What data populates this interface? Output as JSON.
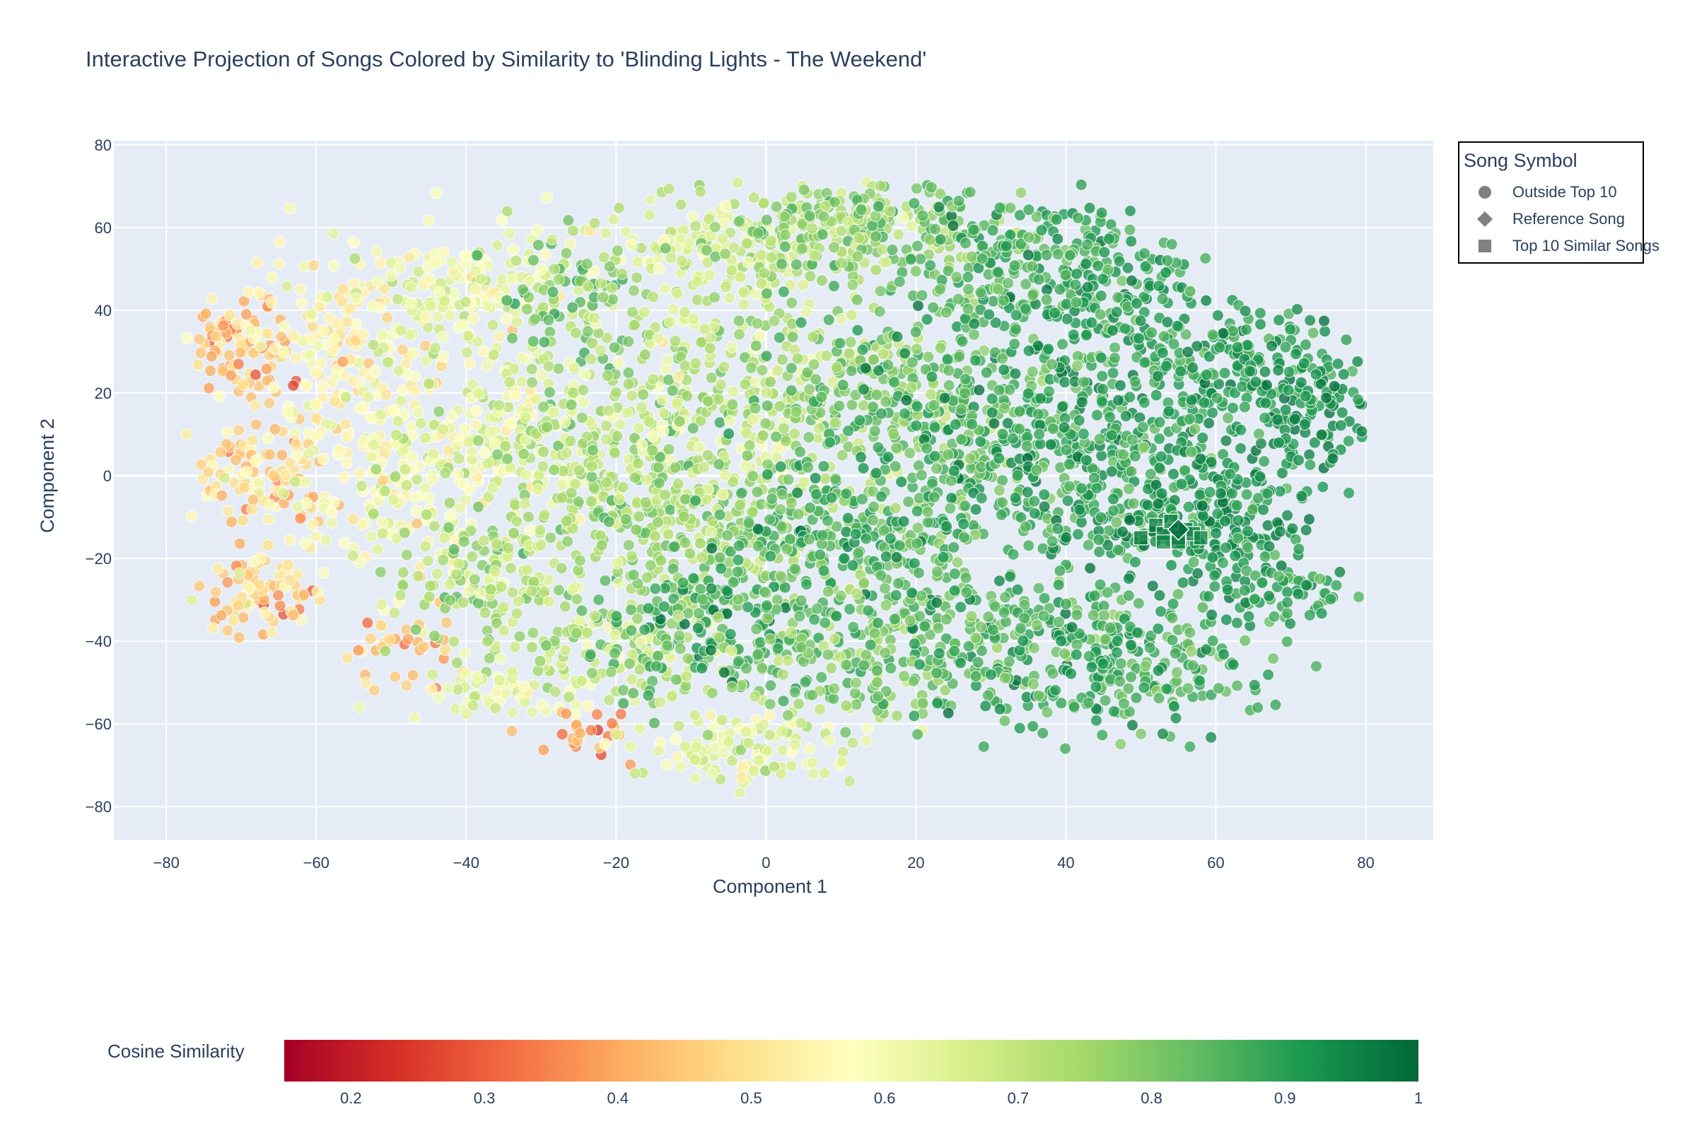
{
  "chart_data": {
    "type": "scatter",
    "title": "Interactive Projection of Songs Colored by Similarity to 'Blinding Lights - The Weekend'",
    "xlabel": "Component 1",
    "ylabel": "Component 2",
    "xlim": [
      -87,
      89
    ],
    "ylim": [
      -88,
      81
    ],
    "xticks": [
      -80,
      -60,
      -40,
      -20,
      0,
      20,
      40,
      60,
      80
    ],
    "yticks": [
      -80,
      -60,
      -40,
      -20,
      0,
      20,
      40,
      60,
      80
    ],
    "x_tick_labels": [
      "−80",
      "−60",
      "−40",
      "−20",
      "0",
      "20",
      "40",
      "60",
      "80"
    ],
    "y_tick_labels": [
      "−80",
      "−60",
      "−40",
      "−20",
      "0",
      "20",
      "40",
      "60",
      "80"
    ],
    "grid": true,
    "legend": {
      "title": "Song Symbol",
      "placement": "top-right, outside plot",
      "entries": [
        "Outside Top 10",
        "Reference Song",
        "Top 10 Similar Songs"
      ]
    },
    "colorbar": {
      "title": "Cosine Similarity",
      "range": [
        0.15,
        1.0
      ],
      "ticks": [
        0.2,
        0.3,
        0.4,
        0.5,
        0.6,
        0.7,
        0.8,
        0.9,
        1
      ],
      "tick_labels": [
        "0.2",
        "0.3",
        "0.4",
        "0.5",
        "0.6",
        "0.7",
        "0.8",
        "0.9",
        "1"
      ],
      "colorscale": [
        "#a50026",
        "#d73027",
        "#f46d43",
        "#fdae61",
        "#fee08b",
        "#ffffbf",
        "#d9ef8b",
        "#a6d96a",
        "#66bd63",
        "#1a9850",
        "#006837"
      ],
      "placement": "bottom, horizontal"
    },
    "reference_song": {
      "x": 55,
      "y": -13,
      "similarity": 1.0
    },
    "top10_similar_songs": [
      {
        "x": 50,
        "y": -15,
        "similarity": 0.97
      },
      {
        "x": 52,
        "y": -12,
        "similarity": 0.96
      },
      {
        "x": 53,
        "y": -14,
        "similarity": 0.97
      },
      {
        "x": 54,
        "y": -11,
        "similarity": 0.96
      },
      {
        "x": 55,
        "y": -15,
        "similarity": 0.98
      },
      {
        "x": 56,
        "y": -13,
        "similarity": 0.97
      },
      {
        "x": 57,
        "y": -14,
        "similarity": 0.96
      },
      {
        "x": 55,
        "y": -16,
        "similarity": 0.96
      },
      {
        "x": 53,
        "y": -16,
        "similarity": 0.95
      },
      {
        "x": 58,
        "y": -15,
        "similarity": 0.95
      }
    ],
    "clusters": [
      {
        "cx": -70,
        "cy": 30,
        "sx": 4,
        "sy": 7,
        "n": 90,
        "sim": 0.44,
        "sim_sd": 0.07
      },
      {
        "cx": -68,
        "cy": 0,
        "sx": 5,
        "sy": 7,
        "n": 100,
        "sim": 0.5,
        "sim_sd": 0.06
      },
      {
        "cx": -67,
        "cy": -28,
        "sx": 4,
        "sy": 6,
        "n": 80,
        "sim": 0.47,
        "sim_sd": 0.07
      },
      {
        "cx": -55,
        "cy": 30,
        "sx": 7,
        "sy": 12,
        "n": 160,
        "sim": 0.55,
        "sim_sd": 0.05
      },
      {
        "cx": -50,
        "cy": 0,
        "sx": 7,
        "sy": 12,
        "n": 150,
        "sim": 0.58,
        "sim_sd": 0.05
      },
      {
        "cx": -48,
        "cy": -40,
        "sx": 4,
        "sy": 6,
        "n": 40,
        "sim": 0.45,
        "sim_sd": 0.06
      },
      {
        "cx": -40,
        "cy": 45,
        "sx": 8,
        "sy": 8,
        "n": 170,
        "sim": 0.62,
        "sim_sd": 0.05
      },
      {
        "cx": -35,
        "cy": 10,
        "sx": 9,
        "sy": 12,
        "n": 240,
        "sim": 0.66,
        "sim_sd": 0.06
      },
      {
        "cx": -38,
        "cy": -25,
        "sx": 8,
        "sy": 10,
        "n": 150,
        "sim": 0.74,
        "sim_sd": 0.06
      },
      {
        "cx": -35,
        "cy": -52,
        "sx": 6,
        "sy": 4,
        "n": 60,
        "sim": 0.62,
        "sim_sd": 0.05
      },
      {
        "cx": -25,
        "cy": 40,
        "sx": 5,
        "sy": 10,
        "n": 90,
        "sim": 0.8,
        "sim_sd": 0.06
      },
      {
        "cx": -20,
        "cy": 0,
        "sx": 8,
        "sy": 12,
        "n": 200,
        "sim": 0.74,
        "sim_sd": 0.06
      },
      {
        "cx": -20,
        "cy": -40,
        "sx": 8,
        "sy": 8,
        "n": 150,
        "sim": 0.72,
        "sim_sd": 0.06
      },
      {
        "cx": -24,
        "cy": -62,
        "sx": 3,
        "sy": 3,
        "n": 25,
        "sim": 0.38,
        "sim_sd": 0.07
      },
      {
        "cx": -5,
        "cy": 55,
        "sx": 8,
        "sy": 8,
        "n": 190,
        "sim": 0.68,
        "sim_sd": 0.05
      },
      {
        "cx": -5,
        "cy": 20,
        "sx": 9,
        "sy": 12,
        "n": 230,
        "sim": 0.7,
        "sim_sd": 0.07
      },
      {
        "cx": -8,
        "cy": -10,
        "sx": 9,
        "sy": 8,
        "n": 220,
        "sim": 0.76,
        "sim_sd": 0.06
      },
      {
        "cx": -5,
        "cy": -38,
        "sx": 8,
        "sy": 8,
        "n": 200,
        "sim": 0.86,
        "sim_sd": 0.06
      },
      {
        "cx": -3,
        "cy": -65,
        "sx": 8,
        "sy": 5,
        "n": 120,
        "sim": 0.64,
        "sim_sd": 0.05
      },
      {
        "cx": 12,
        "cy": 60,
        "sx": 9,
        "sy": 6,
        "n": 230,
        "sim": 0.77,
        "sim_sd": 0.05
      },
      {
        "cx": 15,
        "cy": 20,
        "sx": 9,
        "sy": 10,
        "n": 250,
        "sim": 0.8,
        "sim_sd": 0.06
      },
      {
        "cx": 12,
        "cy": -15,
        "sx": 9,
        "sy": 10,
        "n": 280,
        "sim": 0.86,
        "sim_sd": 0.05
      },
      {
        "cx": 12,
        "cy": -45,
        "sx": 8,
        "sy": 8,
        "n": 130,
        "sim": 0.8,
        "sim_sd": 0.06
      },
      {
        "cx": 30,
        "cy": 50,
        "sx": 8,
        "sy": 10,
        "n": 200,
        "sim": 0.86,
        "sim_sd": 0.05
      },
      {
        "cx": 32,
        "cy": 5,
        "sx": 9,
        "sy": 14,
        "n": 300,
        "sim": 0.88,
        "sim_sd": 0.05
      },
      {
        "cx": 30,
        "cy": -40,
        "sx": 10,
        "sy": 10,
        "n": 230,
        "sim": 0.86,
        "sim_sd": 0.05
      },
      {
        "cx": 45,
        "cy": 40,
        "sx": 7,
        "sy": 12,
        "n": 200,
        "sim": 0.9,
        "sim_sd": 0.04
      },
      {
        "cx": 48,
        "cy": 0,
        "sx": 6,
        "sy": 12,
        "n": 220,
        "sim": 0.9,
        "sim_sd": 0.04
      },
      {
        "cx": 50,
        "cy": -45,
        "sx": 8,
        "sy": 9,
        "n": 200,
        "sim": 0.88,
        "sim_sd": 0.04
      },
      {
        "cx": 62,
        "cy": 25,
        "sx": 7,
        "sy": 10,
        "n": 180,
        "sim": 0.9,
        "sim_sd": 0.04
      },
      {
        "cx": 60,
        "cy": -10,
        "sx": 6,
        "sy": 8,
        "n": 180,
        "sim": 0.92,
        "sim_sd": 0.04
      },
      {
        "cx": 72,
        "cy": 15,
        "sx": 4,
        "sy": 10,
        "n": 120,
        "sim": 0.93,
        "sim_sd": 0.03
      },
      {
        "cx": 68,
        "cy": -28,
        "sx": 5,
        "sy": 4,
        "n": 60,
        "sim": 0.9,
        "sim_sd": 0.03
      }
    ]
  },
  "colors": {
    "plot_background": "#e5ecf6",
    "gridline": "#ffffff",
    "text": "#2a3f5f",
    "legend_symbol": "#808080"
  }
}
